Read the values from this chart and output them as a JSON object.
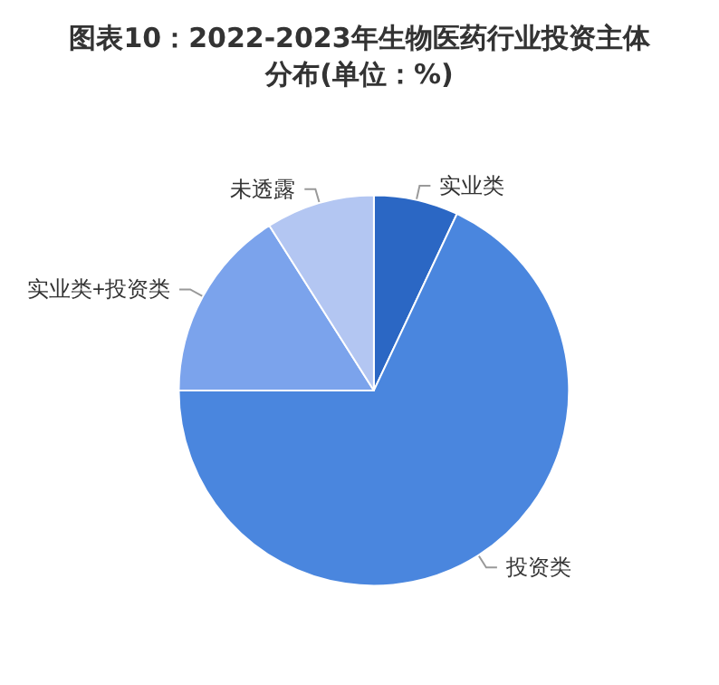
{
  "chart_data": {
    "type": "pie",
    "title": "图表10：2022-2023年生物医药行业投资主体分布(单位：%)",
    "categories": [
      "实业类",
      "投资类",
      "实业类+投资类",
      "未透露"
    ],
    "values": [
      7,
      68,
      16,
      9
    ],
    "colors": [
      "#2b67c4",
      "#4a86de",
      "#7ba3ec",
      "#b3c6f2"
    ],
    "legend": false
  }
}
